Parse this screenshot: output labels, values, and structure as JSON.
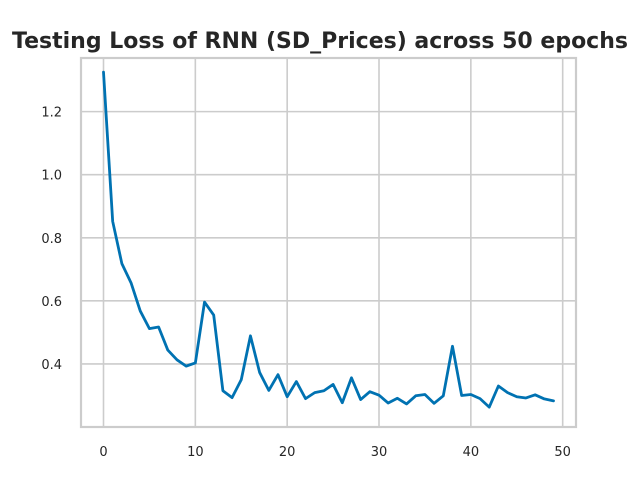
{
  "chart_data": {
    "type": "line",
    "title": "Testing Loss of RNN (SD_Prices) across 50 epochs",
    "xlabel": "",
    "ylabel": "",
    "xlim": [
      -2.45,
      51.45
    ],
    "ylim": [
      0.2,
      1.37
    ],
    "x_ticks": [
      0,
      10,
      20,
      30,
      40,
      50
    ],
    "y_ticks": [
      0.4,
      0.6,
      0.8,
      1.0,
      1.2
    ],
    "y_tick_labels": [
      "0.4",
      "0.6",
      "0.8",
      "1.0",
      "1.2"
    ],
    "grid": true,
    "legend": "none",
    "series": [
      {
        "color": "#0072b2",
        "x": [
          0,
          1,
          2,
          3,
          4,
          5,
          6,
          7,
          8,
          9,
          10,
          11,
          12,
          13,
          14,
          15,
          16,
          17,
          18,
          19,
          20,
          21,
          22,
          23,
          24,
          25,
          26,
          27,
          28,
          29,
          30,
          31,
          32,
          33,
          34,
          35,
          36,
          37,
          38,
          39,
          40,
          41,
          42,
          43,
          44,
          45,
          46,
          47,
          48,
          49
        ],
        "values": [
          1.325,
          0.852,
          0.718,
          0.657,
          0.568,
          0.512,
          0.517,
          0.444,
          0.413,
          0.393,
          0.403,
          0.596,
          0.555,
          0.315,
          0.293,
          0.35,
          0.489,
          0.373,
          0.316,
          0.366,
          0.296,
          0.344,
          0.29,
          0.309,
          0.315,
          0.335,
          0.277,
          0.356,
          0.287,
          0.312,
          0.301,
          0.276,
          0.291,
          0.273,
          0.299,
          0.303,
          0.275,
          0.299,
          0.456,
          0.3,
          0.303,
          0.29,
          0.263,
          0.33,
          0.309,
          0.296,
          0.292,
          0.302,
          0.289,
          0.283
        ]
      }
    ]
  }
}
